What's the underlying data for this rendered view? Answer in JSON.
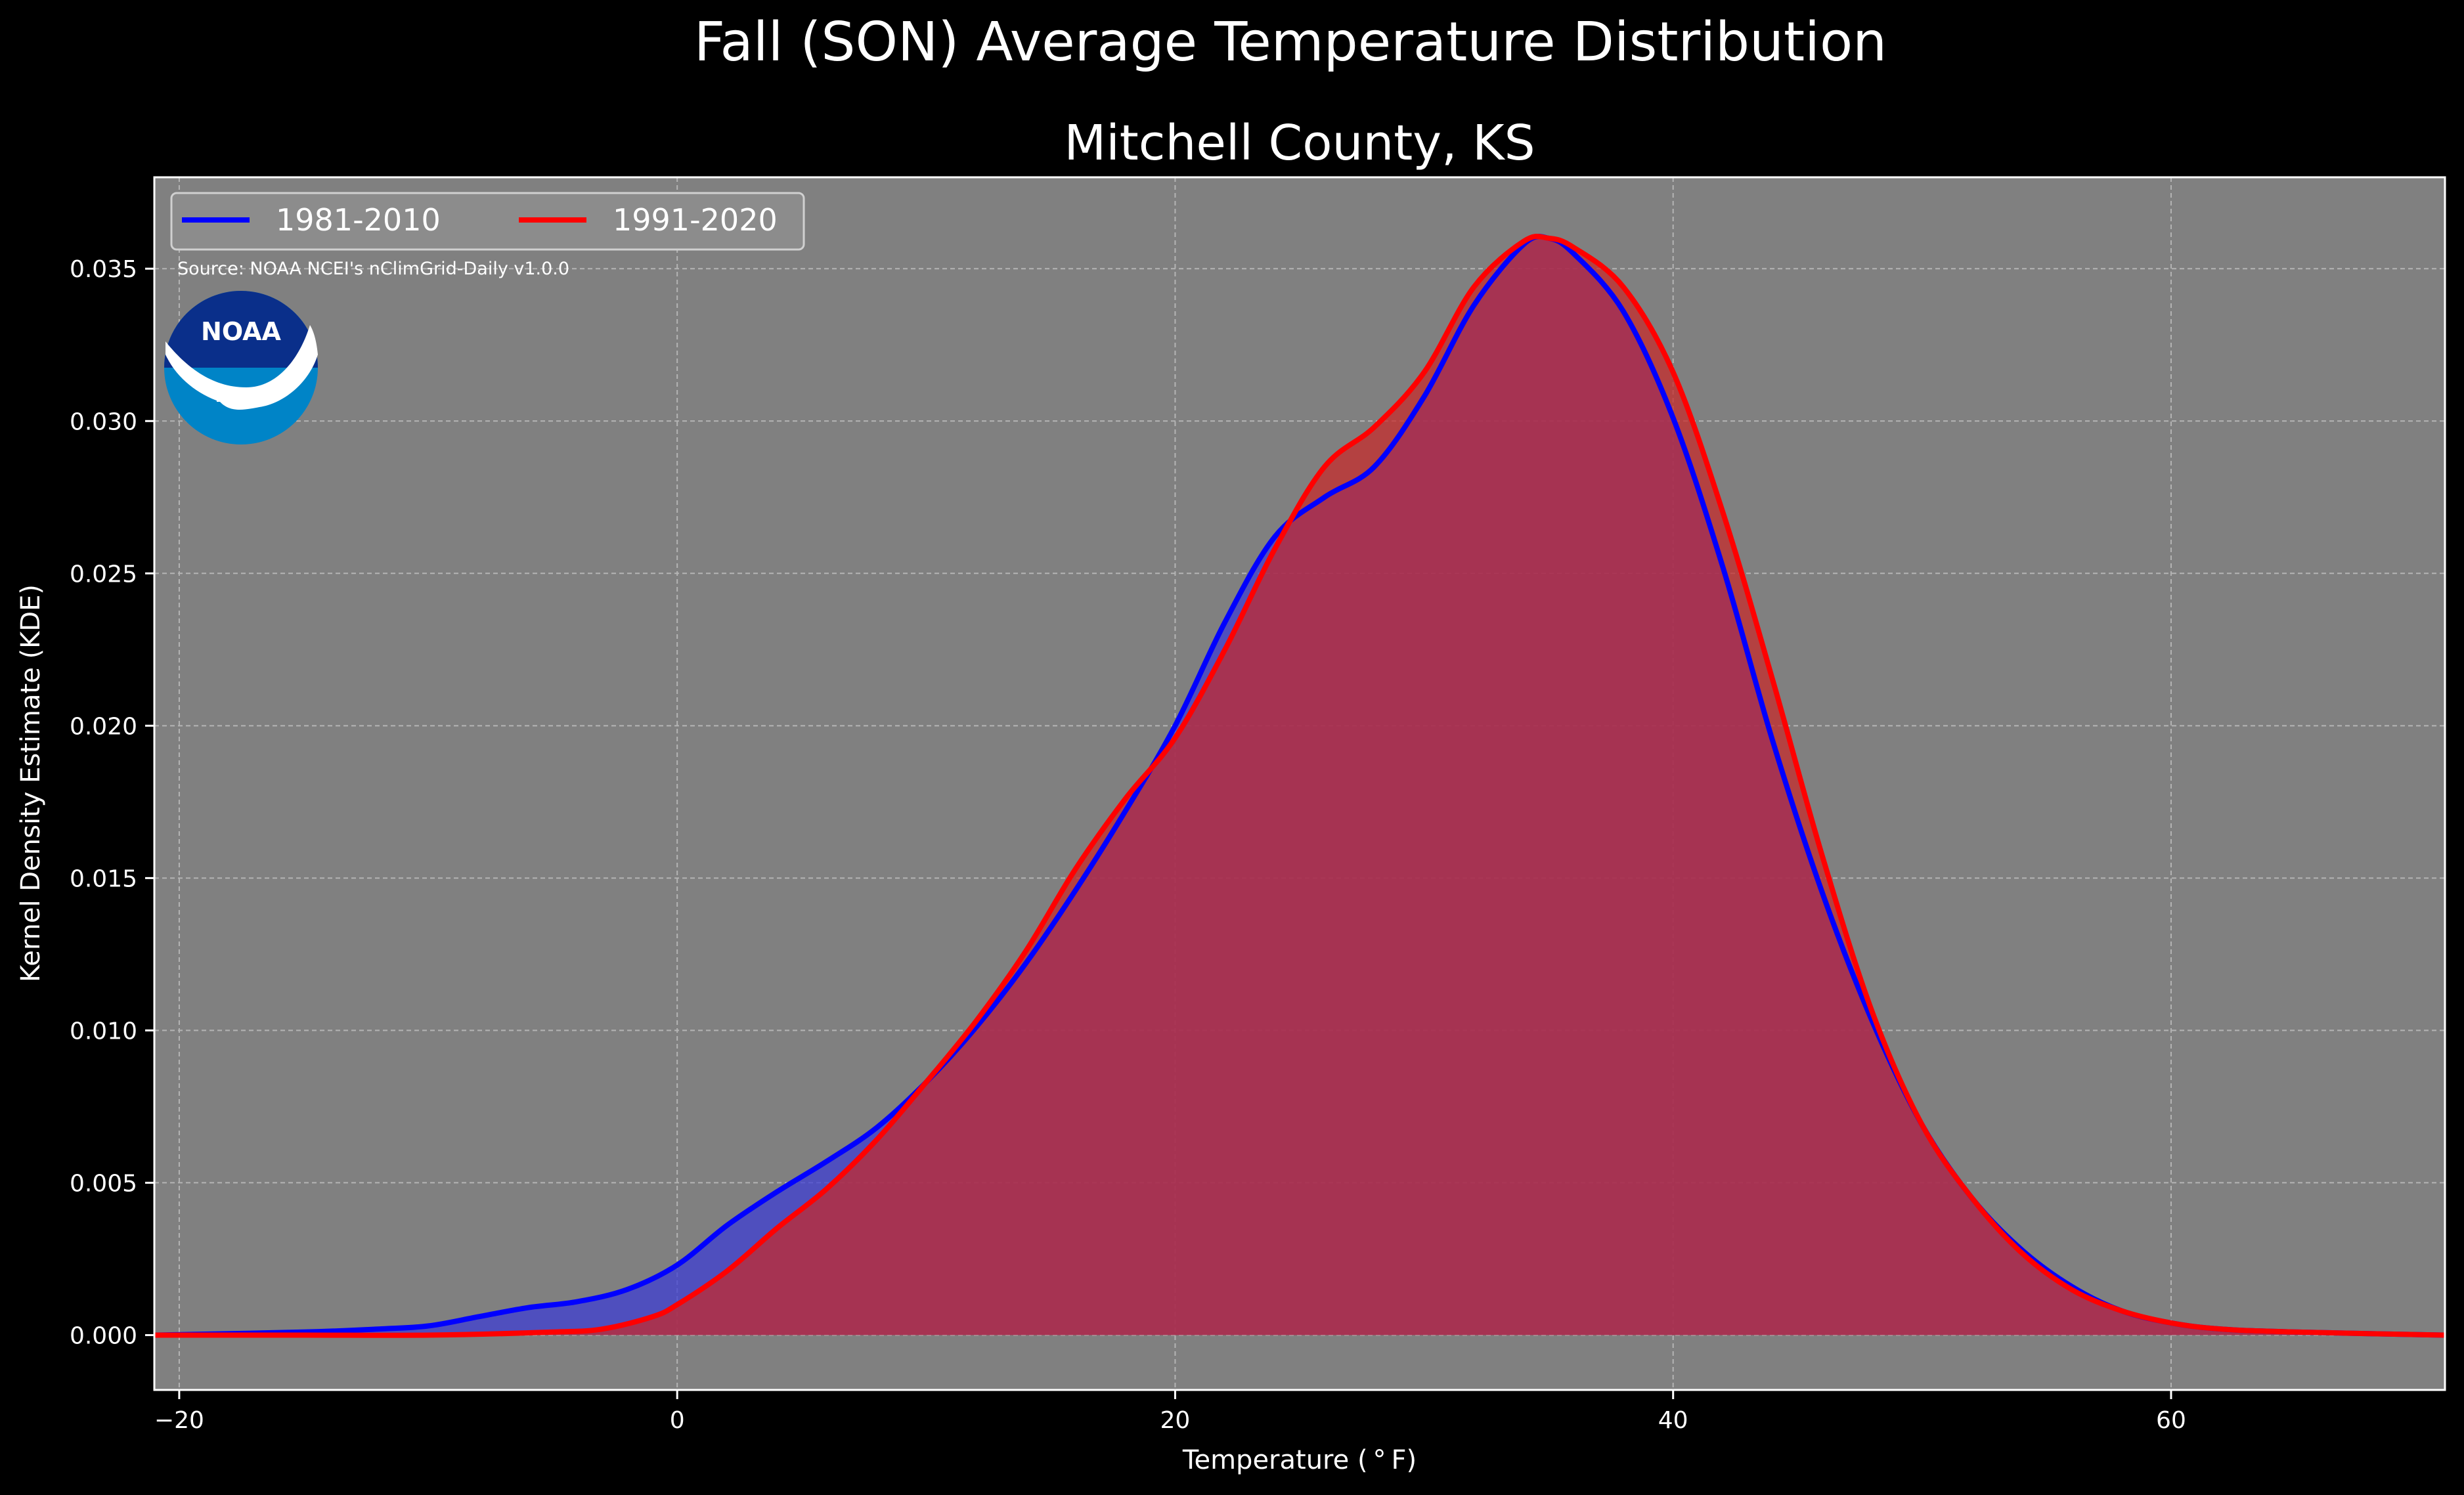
{
  "chart_data": {
    "type": "area",
    "suptitle": "Fall (SON) Average Temperature Distribution",
    "title": "Mitchell County, KS",
    "xlabel": "Temperature ($^\\circ$F)",
    "xlabel_display": "Temperature ( ° F)",
    "ylabel": "Kernel Density Estimate (KDE)",
    "xlim": [
      -21,
      71
    ],
    "ylim": [
      -0.0018,
      0.038
    ],
    "xticks": [
      -20,
      0,
      20,
      40,
      60
    ],
    "xtick_labels": [
      "−20",
      "0",
      "20",
      "40",
      "60"
    ],
    "yticks": [
      0.0,
      0.005,
      0.01,
      0.015,
      0.02,
      0.025,
      0.03,
      0.035
    ],
    "ytick_labels": [
      "0.000",
      "0.005",
      "0.010",
      "0.015",
      "0.020",
      "0.025",
      "0.030",
      "0.035"
    ],
    "grid": true,
    "legend_position": "top-left",
    "source": "Source: NOAA NCEI's nClimGrid-Daily v1.0.0",
    "series": [
      {
        "name": "1981-2010",
        "color": "#0000ff",
        "fill": "#3b3bd6",
        "x": [
          -21,
          -15,
          -12,
          -10,
          -8,
          -6,
          -4,
          -2,
          0,
          2,
          4,
          6,
          8,
          10,
          12,
          14,
          16,
          18,
          20,
          22,
          24,
          26,
          28,
          30,
          32,
          34,
          35,
          36,
          38,
          40,
          42,
          44,
          46,
          48,
          50,
          52,
          54,
          56,
          58,
          60,
          62,
          65,
          71
        ],
        "values": [
          0.0,
          0.0001,
          0.0002,
          0.0003,
          0.0006,
          0.0009,
          0.0011,
          0.0015,
          0.0023,
          0.0036,
          0.0047,
          0.0057,
          0.0068,
          0.0083,
          0.0101,
          0.0122,
          0.0146,
          0.0172,
          0.02,
          0.0234,
          0.0262,
          0.0275,
          0.0285,
          0.0308,
          0.0338,
          0.0358,
          0.036,
          0.0355,
          0.0336,
          0.0301,
          0.0252,
          0.0195,
          0.0145,
          0.0103,
          0.0069,
          0.0045,
          0.0028,
          0.0016,
          0.0008,
          0.0004,
          0.0002,
          0.0001,
          0.0
        ]
      },
      {
        "name": "1991-2020",
        "color": "#ff0000",
        "fill": "#c82828",
        "x": [
          -21,
          -15,
          -10,
          -5,
          -3,
          -1,
          0,
          2,
          4,
          6,
          8,
          10,
          12,
          14,
          16,
          18,
          20,
          22,
          24,
          26,
          28,
          30,
          32,
          34,
          35,
          36,
          38,
          40,
          42,
          44,
          46,
          48,
          50,
          52,
          54,
          56,
          58,
          60,
          62,
          65,
          71
        ],
        "values": [
          0.0,
          0.0,
          0.0,
          0.0001,
          0.0002,
          0.0006,
          0.001,
          0.0021,
          0.0035,
          0.0048,
          0.0064,
          0.0083,
          0.0103,
          0.0126,
          0.0153,
          0.0176,
          0.0196,
          0.0225,
          0.0258,
          0.0285,
          0.0298,
          0.0316,
          0.0344,
          0.0359,
          0.036,
          0.0357,
          0.0344,
          0.0316,
          0.027,
          0.0215,
          0.0157,
          0.0106,
          0.0069,
          0.0045,
          0.0027,
          0.0015,
          0.0008,
          0.0004,
          0.0002,
          0.0001,
          0.0
        ]
      }
    ]
  },
  "colors": {
    "background": "#000000",
    "plot_background": "#808080",
    "overlap_fill": "#9e1f5e",
    "noaa_dark_blue": "#0a2f8a",
    "noaa_light_blue": "#0084c7"
  },
  "logo": {
    "icon": "noaa-logo",
    "text": "NOAA"
  }
}
